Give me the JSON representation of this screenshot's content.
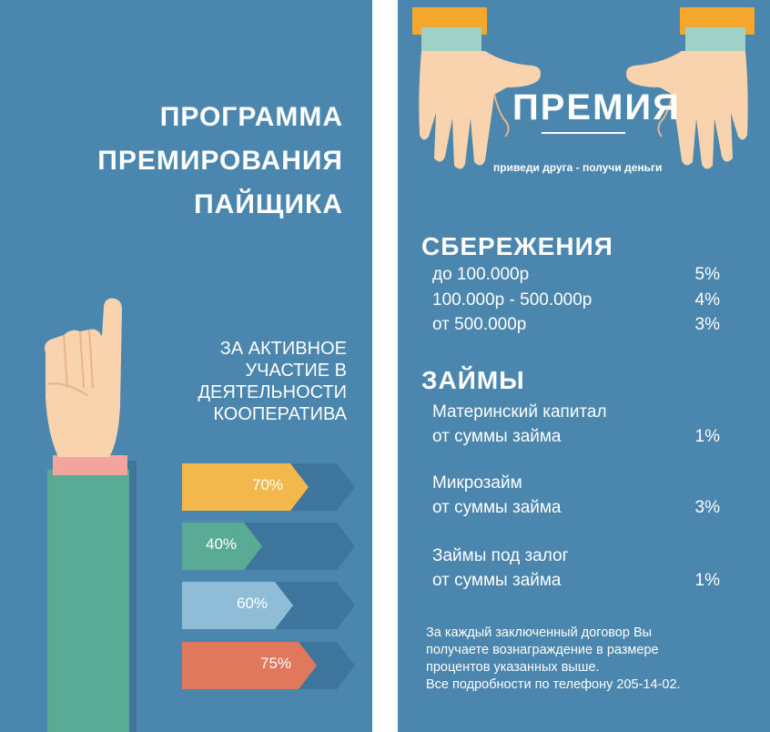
{
  "left_panel": {
    "title_lines": [
      "ПРОГРАММА",
      "ПРЕМИРОВАНИЯ",
      "ПАЙЩИКА"
    ],
    "subtitle_lines": [
      "ЗА АКТИВНОЕ",
      "УЧАСТИЕ В",
      "ДЕЯТЕЛЬНОСТИ",
      "КООПЕРАТИВА"
    ],
    "bars": [
      {
        "label": "70%",
        "value": 70,
        "color": "#f2b84b"
      },
      {
        "label": "40%",
        "value": 40,
        "color": "#5aab96"
      },
      {
        "label": "60%",
        "value": 60,
        "color": "#8fbdd8"
      },
      {
        "label": "75%",
        "value": 75,
        "color": "#e0785d"
      }
    ],
    "bar_track_color": "#3d759d"
  },
  "right_panel": {
    "heading": "ПРЕМИЯ",
    "tagline": "приведи друга - получи деньги",
    "savings": {
      "title": "СБЕРЕЖЕНИЯ",
      "rows": [
        {
          "label": "до 100.000р",
          "rate": "5%"
        },
        {
          "label": "100.000р - 500.000р",
          "rate": "4%"
        },
        {
          "label": "от 500.000р",
          "rate": "3%"
        }
      ]
    },
    "loans": {
      "title": "ЗАЙМЫ",
      "items": [
        {
          "line1": "Материнский капитал",
          "line2": "от суммы займа",
          "rate": "1%"
        },
        {
          "line1": "Микрозайм",
          "line2": "от суммы займа",
          "rate": "3%"
        },
        {
          "line1": "Займы под залог",
          "line2": "от суммы займа",
          "rate": "1%"
        }
      ]
    },
    "footer_lines": [
      "За каждый заключенный договор Вы",
      "получаете вознаграждение в размере",
      "процентов указанных выше.",
      "Все подробности по телефону 205-14-02."
    ]
  },
  "colors": {
    "panel_bg": "#4a86ad",
    "skin": "#f8d3ad",
    "sleeve_green": "#5aab96",
    "cuff_pink": "#f1a59c",
    "sleeve_orange": "#f4a72a",
    "cuff_teal": "#9fd1c6"
  },
  "icons": [
    "pointing-hand-icon",
    "open-hands-icon"
  ]
}
